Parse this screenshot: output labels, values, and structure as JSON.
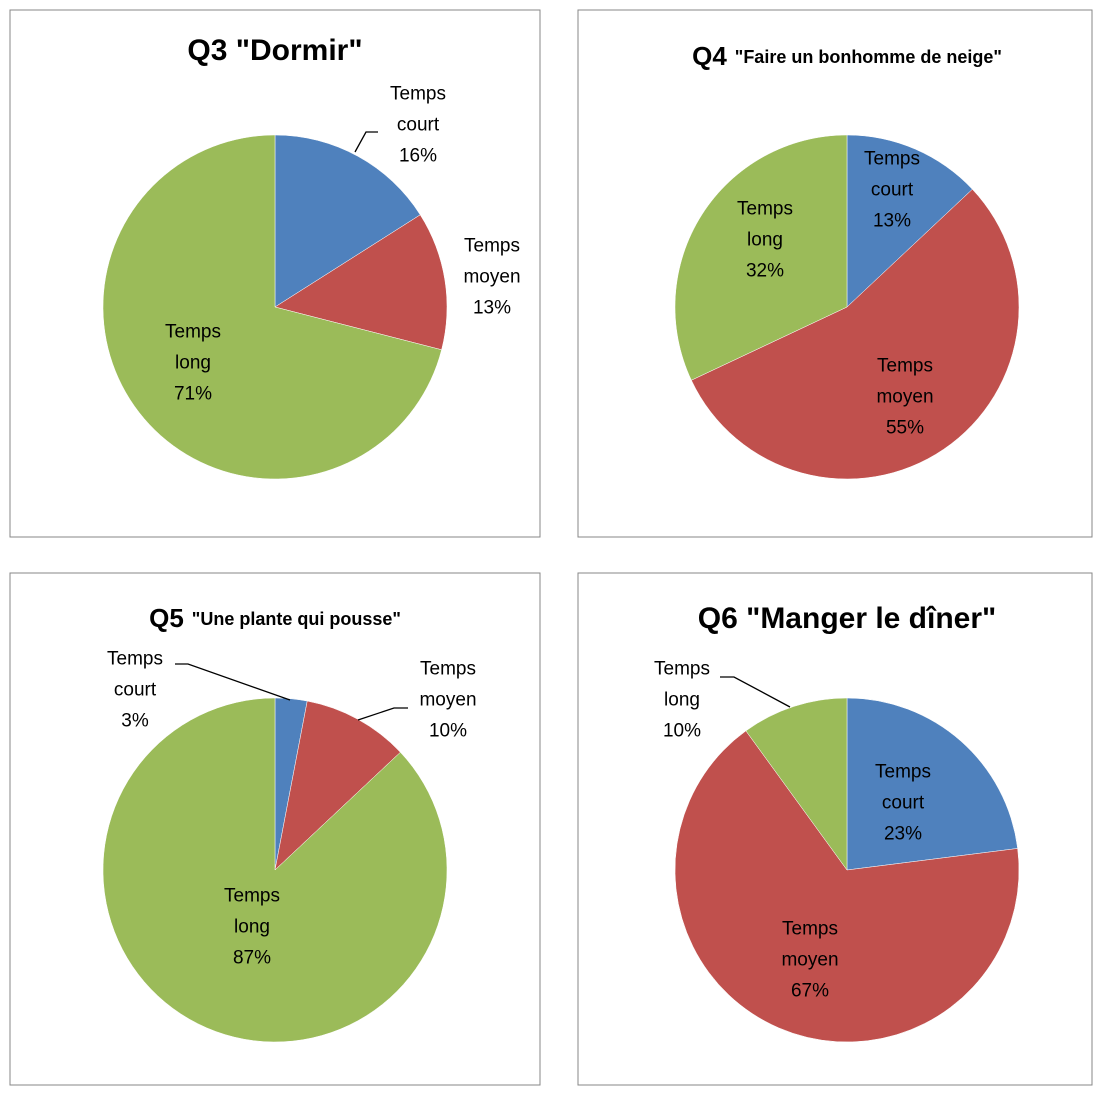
{
  "chart_data": [
    {
      "type": "pie",
      "title": "Q3 \"Dormir\"",
      "categories": [
        "Temps court",
        "Temps moyen",
        "Temps long"
      ],
      "values": [
        16,
        13,
        71
      ],
      "value_labels": [
        "16%",
        "13%",
        "71%"
      ],
      "colors": [
        "#4f81bd",
        "#c0504d",
        "#9bbb59"
      ]
    },
    {
      "type": "pie",
      "title": "Q4",
      "subtitle": "\"Faire un bonhomme de neige\"",
      "categories": [
        "Temps court",
        "Temps moyen",
        "Temps long"
      ],
      "values": [
        13,
        55,
        32
      ],
      "value_labels": [
        "13%",
        "55%",
        "32%"
      ],
      "colors": [
        "#4f81bd",
        "#c0504d",
        "#9bbb59"
      ]
    },
    {
      "type": "pie",
      "title": "Q5",
      "subtitle": "\"Une plante qui pousse\"",
      "categories": [
        "Temps court",
        "Temps moyen",
        "Temps long"
      ],
      "values": [
        3,
        10,
        87
      ],
      "value_labels": [
        "3%",
        "10%",
        "87%"
      ],
      "colors": [
        "#4f81bd",
        "#c0504d",
        "#9bbb59"
      ]
    },
    {
      "type": "pie",
      "title": "Q6 \"Manger le dîner\"",
      "categories": [
        "Temps court",
        "Temps moyen",
        "Temps long"
      ],
      "values": [
        23,
        67,
        10
      ],
      "value_labels": [
        "23%",
        "67%",
        "10%"
      ],
      "colors": [
        "#4f81bd",
        "#c0504d",
        "#9bbb59"
      ]
    }
  ]
}
